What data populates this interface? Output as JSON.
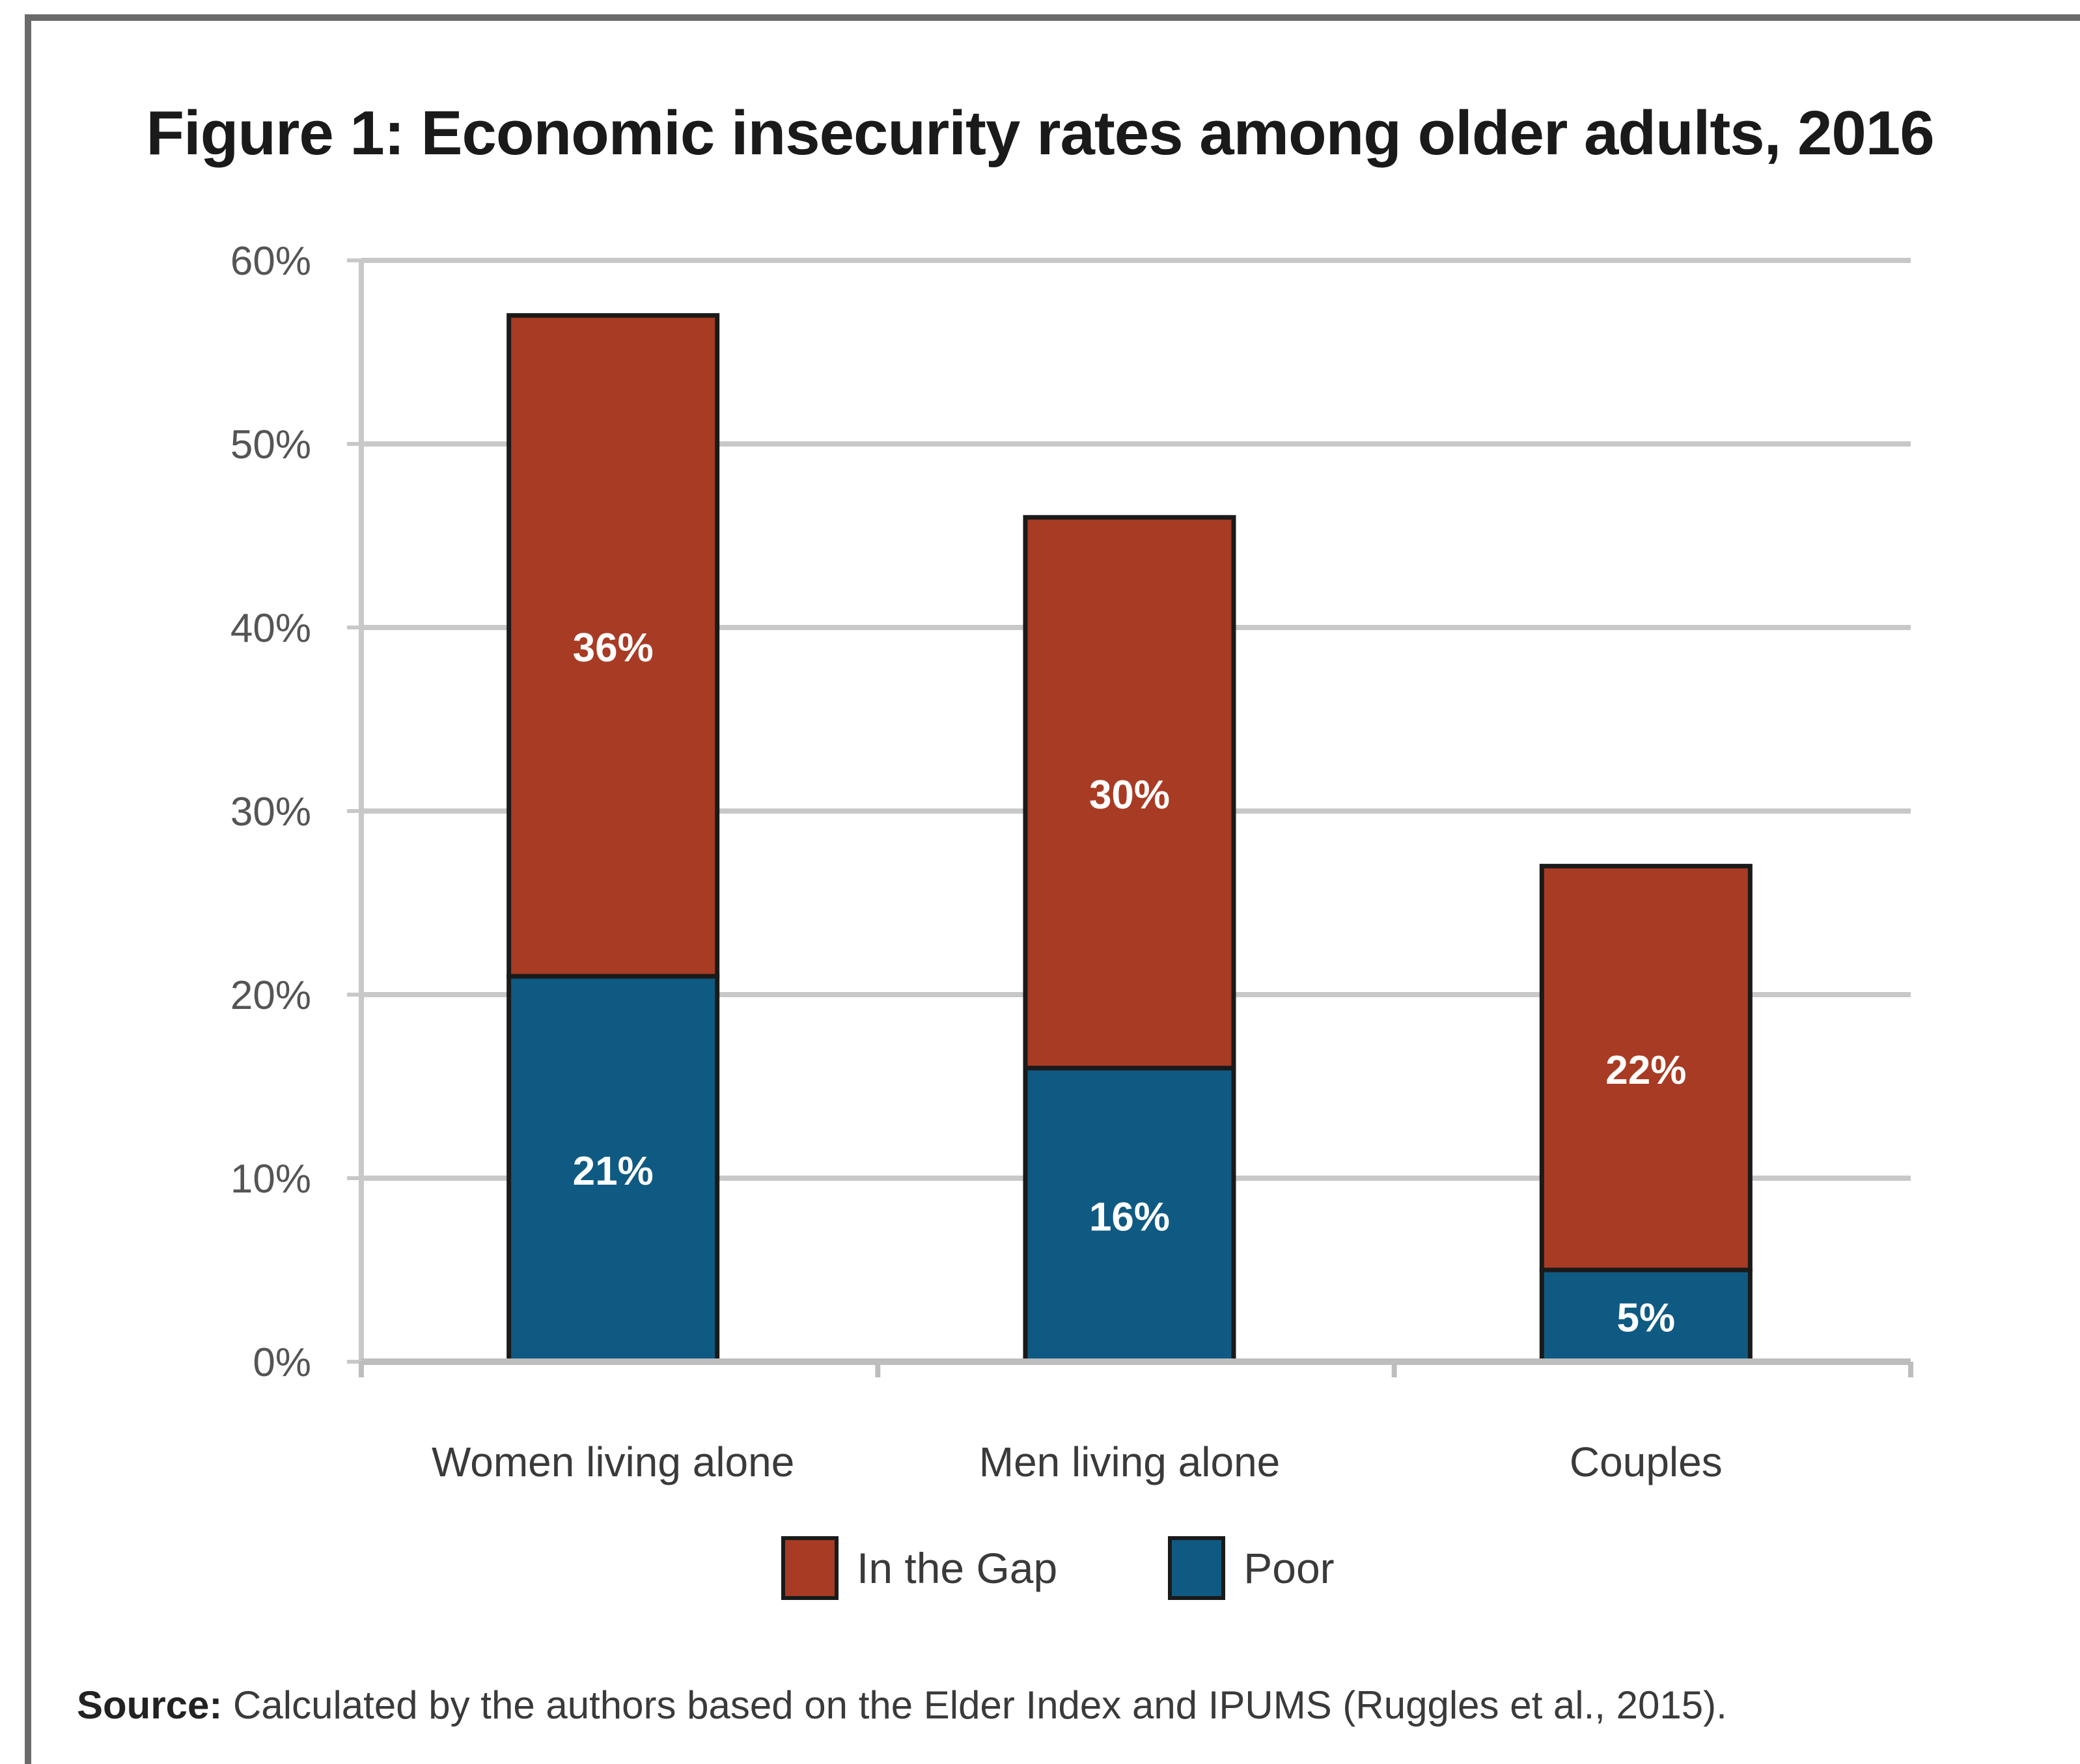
{
  "chart_data": {
    "type": "bar",
    "stacked": true,
    "title": "Figure 1:  Economic insecurity rates among older adults, 2016",
    "categories": [
      "Women living alone",
      "Men living alone",
      "Couples"
    ],
    "series": [
      {
        "name": "Poor",
        "values": [
          21,
          16,
          5
        ],
        "labels": [
          "21%",
          "16%",
          "5%"
        ],
        "color": "#0f5a82"
      },
      {
        "name": "In the Gap",
        "values": [
          36,
          30,
          22
        ],
        "labels": [
          "36%",
          "30%",
          "22%"
        ],
        "color": "#a83b23"
      }
    ],
    "ylim": [
      0,
      60
    ],
    "yticks": [
      "0%",
      "10%",
      "20%",
      "30%",
      "40%",
      "50%",
      "60%"
    ],
    "grid": true,
    "legend": [
      "In the Gap",
      "Poor"
    ],
    "legend_position": "bottom",
    "colors": {
      "gap": "#a83b23",
      "poor": "#0f5a82",
      "grid": "#c8c8c8",
      "outline": "#1a1a1a"
    }
  },
  "source_label": "Source:",
  "source_text": " Calculated by the authors based on the Elder Index and IPUMS (Ruggles et al., 2015)."
}
